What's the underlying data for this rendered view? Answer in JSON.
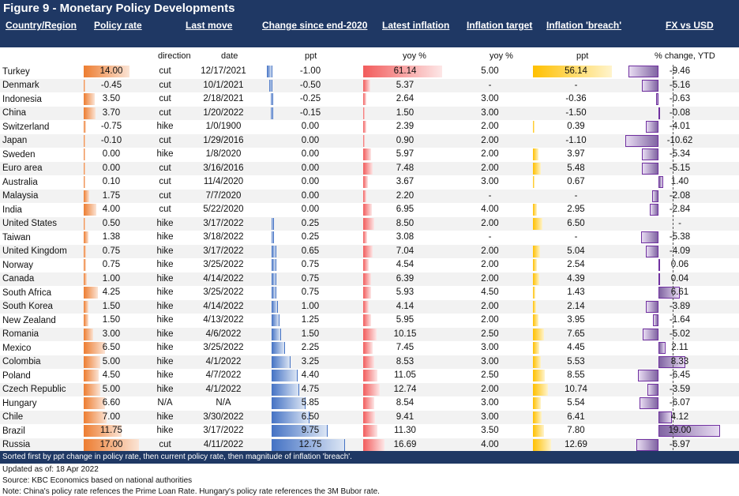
{
  "title": "Figure 9 - Monetary Policy Developments",
  "headers": {
    "country": "Country/Region",
    "policy_rate": "Policy rate",
    "last_move": "Last move",
    "change": "Change since end-2020",
    "inflation": "Latest inflation",
    "target": "Inflation target",
    "breach": "Inflation 'breach'",
    "fx": "FX vs USD"
  },
  "subheaders": {
    "direction": "direction",
    "date": "date",
    "ppt": "ppt",
    "yoy1": "yoy %",
    "yoy2": "yoy %",
    "ppt2": "ppt",
    "fx": "% change, YTD"
  },
  "colors": {
    "header_bg": "#1f3864",
    "policy": "#ed7d31",
    "change": "#4472c4",
    "inflation": "#f25c5c",
    "breach": "#ffc000",
    "fx": "#8064a2"
  },
  "rows": [
    {
      "country": "Turkey",
      "rate": "14.00",
      "dir": "cut",
      "date": "12/17/2021",
      "chg": "-1.00",
      "infl": "61.14",
      "target": "5.00",
      "breach": "56.14",
      "fx": "-9.46"
    },
    {
      "country": "Denmark",
      "rate": "-0.45",
      "dir": "cut",
      "date": "10/1/2021",
      "chg": "-0.50",
      "infl": "5.37",
      "target": "-",
      "breach": "-",
      "fx": "-5.16"
    },
    {
      "country": "Indonesia",
      "rate": "3.50",
      "dir": "cut",
      "date": "2/18/2021",
      "chg": "-0.25",
      "infl": "2.64",
      "target": "3.00",
      "breach": "-0.36",
      "fx": "-0.63"
    },
    {
      "country": "China",
      "rate": "3.70",
      "dir": "cut",
      "date": "1/20/2022",
      "chg": "-0.15",
      "infl": "1.50",
      "target": "3.00",
      "breach": "-1.50",
      "fx": "-0.08"
    },
    {
      "country": "Switzerland",
      "rate": "-0.75",
      "dir": "hike",
      "date": "1/0/1900",
      "chg": "0.00",
      "infl": "2.39",
      "target": "2.00",
      "breach": "0.39",
      "fx": "-4.01"
    },
    {
      "country": "Japan",
      "rate": "-0.10",
      "dir": "cut",
      "date": "1/29/2016",
      "chg": "0.00",
      "infl": "0.90",
      "target": "2.00",
      "breach": "-1.10",
      "fx": "-10.62"
    },
    {
      "country": "Sweden",
      "rate": "0.00",
      "dir": "hike",
      "date": "1/8/2020",
      "chg": "0.00",
      "infl": "5.97",
      "target": "2.00",
      "breach": "3.97",
      "fx": "-5.34"
    },
    {
      "country": "Euro area",
      "rate": "0.00",
      "dir": "cut",
      "date": "3/16/2016",
      "chg": "0.00",
      "infl": "7.48",
      "target": "2.00",
      "breach": "5.48",
      "fx": "-5.15"
    },
    {
      "country": "Australia",
      "rate": "0.10",
      "dir": "cut",
      "date": "11/4/2020",
      "chg": "0.00",
      "infl": "3.67",
      "target": "3.00",
      "breach": "0.67",
      "fx": "1.40"
    },
    {
      "country": "Malaysia",
      "rate": "1.75",
      "dir": "cut",
      "date": "7/7/2020",
      "chg": "0.00",
      "infl": "2.20",
      "target": "-",
      "breach": "-",
      "fx": "-2.08"
    },
    {
      "country": "India",
      "rate": "4.00",
      "dir": "cut",
      "date": "5/22/2020",
      "chg": "0.00",
      "infl": "6.95",
      "target": "4.00",
      "breach": "2.95",
      "fx": "-2.84"
    },
    {
      "country": "United States",
      "rate": "0.50",
      "dir": "hike",
      "date": "3/17/2022",
      "chg": "0.25",
      "infl": "8.50",
      "target": "2.00",
      "breach": "6.50",
      "fx": "-"
    },
    {
      "country": "Taiwan",
      "rate": "1.38",
      "dir": "hike",
      "date": "3/18/2022",
      "chg": "0.25",
      "infl": "3.08",
      "target": "-",
      "breach": "-",
      "fx": "-5.38"
    },
    {
      "country": "United Kingdom",
      "rate": "0.75",
      "dir": "hike",
      "date": "3/17/2022",
      "chg": "0.65",
      "infl": "7.04",
      "target": "2.00",
      "breach": "5.04",
      "fx": "-4.09"
    },
    {
      "country": "Norway",
      "rate": "0.75",
      "dir": "hike",
      "date": "3/25/2022",
      "chg": "0.75",
      "infl": "4.54",
      "target": "2.00",
      "breach": "2.54",
      "fx": "0.06"
    },
    {
      "country": "Canada",
      "rate": "1.00",
      "dir": "hike",
      "date": "4/14/2022",
      "chg": "0.75",
      "infl": "6.39",
      "target": "2.00",
      "breach": "4.39",
      "fx": "0.04"
    },
    {
      "country": "South Africa",
      "rate": "4.25",
      "dir": "hike",
      "date": "3/25/2022",
      "chg": "0.75",
      "infl": "5.93",
      "target": "4.50",
      "breach": "1.43",
      "fx": "6.61"
    },
    {
      "country": "South Korea",
      "rate": "1.50",
      "dir": "hike",
      "date": "4/14/2022",
      "chg": "1.00",
      "infl": "4.14",
      "target": "2.00",
      "breach": "2.14",
      "fx": "-3.89"
    },
    {
      "country": "New Zealand",
      "rate": "1.50",
      "dir": "hike",
      "date": "4/13/2022",
      "chg": "1.25",
      "infl": "5.95",
      "target": "2.00",
      "breach": "3.95",
      "fx": "-1.64"
    },
    {
      "country": "Romania",
      "rate": "3.00",
      "dir": "hike",
      "date": "4/6/2022",
      "chg": "1.50",
      "infl": "10.15",
      "target": "2.50",
      "breach": "7.65",
      "fx": "-5.02"
    },
    {
      "country": "Mexico",
      "rate": "6.50",
      "dir": "hike",
      "date": "3/25/2022",
      "chg": "2.25",
      "infl": "7.45",
      "target": "3.00",
      "breach": "4.45",
      "fx": "2.11"
    },
    {
      "country": "Colombia",
      "rate": "5.00",
      "dir": "hike",
      "date": "4/1/2022",
      "chg": "3.25",
      "infl": "8.53",
      "target": "3.00",
      "breach": "5.53",
      "fx": "8.33"
    },
    {
      "country": "Poland",
      "rate": "4.50",
      "dir": "hike",
      "date": "4/7/2022",
      "chg": "4.40",
      "infl": "11.05",
      "target": "2.50",
      "breach": "8.55",
      "fx": "-6.45"
    },
    {
      "country": "Czech Republic",
      "rate": "5.00",
      "dir": "hike",
      "date": "4/1/2022",
      "chg": "4.75",
      "infl": "12.74",
      "target": "2.00",
      "breach": "10.74",
      "fx": "-3.59"
    },
    {
      "country": "Hungary",
      "rate": "6.60",
      "dir": "N/A",
      "date": "N/A",
      "chg": "5.85",
      "infl": "8.54",
      "target": "3.00",
      "breach": "5.54",
      "fx": "-6.07"
    },
    {
      "country": "Chile",
      "rate": "7.00",
      "dir": "hike",
      "date": "3/30/2022",
      "chg": "6.50",
      "infl": "9.41",
      "target": "3.00",
      "breach": "6.41",
      "fx": "4.12"
    },
    {
      "country": "Brazil",
      "rate": "11.75",
      "dir": "hike",
      "date": "3/17/2022",
      "chg": "9.75",
      "infl": "11.30",
      "target": "3.50",
      "breach": "7.80",
      "fx": "19.00"
    },
    {
      "country": "Russia",
      "rate": "17.00",
      "dir": "cut",
      "date": "4/11/2022",
      "chg": "12.75",
      "infl": "16.69",
      "target": "4.00",
      "breach": "12.69",
      "fx": "-6.97"
    }
  ],
  "footer": {
    "sort_note": "Sorted first by ppt change in policy rate, then current policy rate, then magnitude of inflation 'breach'.",
    "updated": "Updated as of: 18 Apr 2022",
    "source": "Source: KBC Economics based on national authorities",
    "note": "Note: China's policy rate refences the Prime Loan Rate. Hungary's policy rate references the 3M Bubor rate."
  }
}
